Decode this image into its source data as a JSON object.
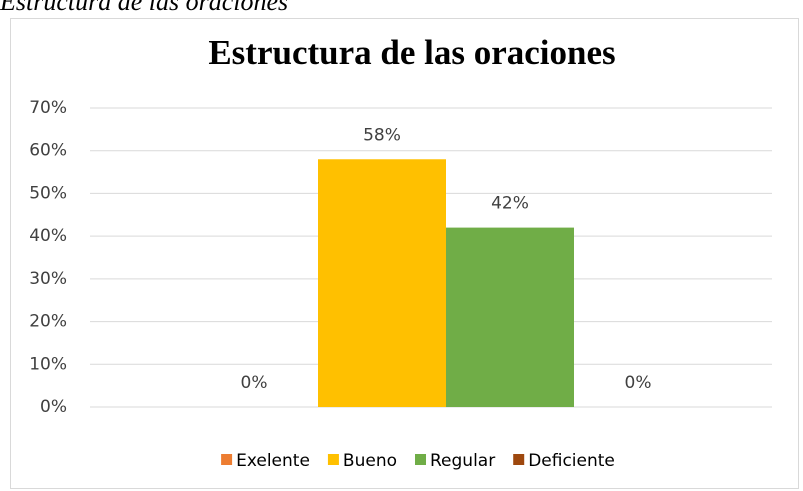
{
  "caption": "Estructura de las oraciones",
  "chart_data": {
    "type": "bar",
    "title": "Estructura de las oraciones",
    "categories": [
      null
    ],
    "series": [
      {
        "name": "Exelente",
        "color": "#ED7D31",
        "values": [
          0
        ],
        "value_labels": [
          "0%"
        ]
      },
      {
        "name": "Bueno",
        "color": "#FFC000",
        "values": [
          58
        ],
        "value_labels": [
          "58%"
        ]
      },
      {
        "name": "Regular",
        "color": "#70AD47",
        "values": [
          42
        ],
        "value_labels": [
          "42%"
        ]
      },
      {
        "name": "Deficiente",
        "color": "#9E480E",
        "values": [
          0
        ],
        "value_labels": [
          "0%"
        ]
      }
    ],
    "ylim": [
      0,
      70
    ],
    "yticks": [
      {
        "value": 0,
        "label": "0%"
      },
      {
        "value": 10,
        "label": "10%"
      },
      {
        "value": 20,
        "label": "20%"
      },
      {
        "value": 30,
        "label": "30%"
      },
      {
        "value": 40,
        "label": "40%"
      },
      {
        "value": 50,
        "label": "50%"
      },
      {
        "value": 60,
        "label": "60%"
      },
      {
        "value": 70,
        "label": "70%"
      }
    ],
    "grid": true,
    "legend": "bottom"
  }
}
